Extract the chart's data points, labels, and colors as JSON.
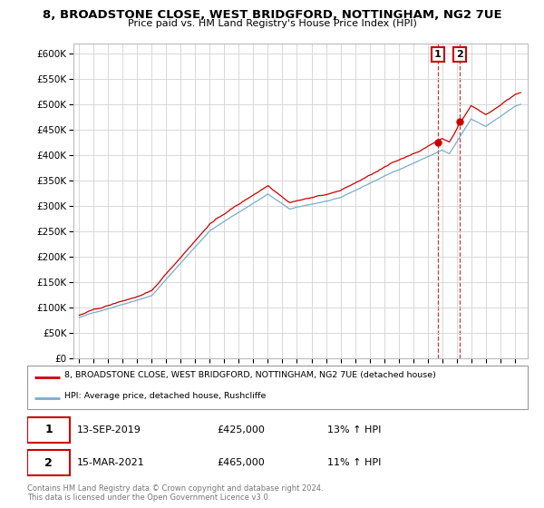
{
  "title": "8, BROADSTONE CLOSE, WEST BRIDGFORD, NOTTINGHAM, NG2 7UE",
  "subtitle": "Price paid vs. HM Land Registry's House Price Index (HPI)",
  "legend_property": "8, BROADSTONE CLOSE, WEST BRIDGFORD, NOTTINGHAM, NG2 7UE (detached house)",
  "legend_hpi": "HPI: Average price, detached house, Rushcliffe",
  "transaction1_label": "1",
  "transaction1_date": "13-SEP-2019",
  "transaction1_price": "£425,000",
  "transaction1_hpi": "13% ↑ HPI",
  "transaction1_year": 2019.708,
  "transaction1_value": 425000,
  "transaction2_label": "2",
  "transaction2_date": "15-MAR-2021",
  "transaction2_price": "£465,000",
  "transaction2_hpi": "11% ↑ HPI",
  "transaction2_year": 2021.208,
  "transaction2_value": 465000,
  "footer1": "Contains HM Land Registry data © Crown copyright and database right 2024.",
  "footer2": "This data is licensed under the Open Government Licence v3.0.",
  "property_color": "#cc0000",
  "hpi_color": "#7aadcc",
  "background_color": "#ffffff",
  "grid_color": "#d8d8d8",
  "ylim": [
    0,
    620000
  ],
  "yticks": [
    0,
    50000,
    100000,
    150000,
    200000,
    250000,
    300000,
    350000,
    400000,
    450000,
    500000,
    550000,
    600000
  ],
  "ytick_labels": [
    "£0",
    "£50K",
    "£100K",
    "£150K",
    "£200K",
    "£250K",
    "£300K",
    "£350K",
    "£400K",
    "£450K",
    "£500K",
    "£550K",
    "£600K"
  ],
  "xlim_start": 1994.6,
  "xlim_end": 2025.9
}
